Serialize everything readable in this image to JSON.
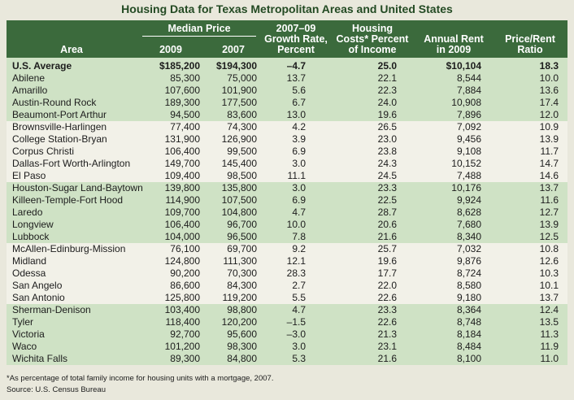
{
  "title": "Housing Data for Texas Metropolitan Areas and United States",
  "header": {
    "area": "Area",
    "median_price": "Median Price",
    "y2009": "2009",
    "y2007": "2007",
    "growth": "2007–09\nGrowth Rate,\nPercent",
    "housing": "Housing\nCosts* Percent\nof Income",
    "rent": "Annual Rent\nin 2009",
    "ratio": "Price/Rent\nRatio"
  },
  "rows": [
    [
      "U.S. Average",
      "$185,200",
      "$194,300",
      "–4.7",
      "25.0",
      "$10,104",
      "18.3"
    ],
    [
      "Abilene",
      "85,300",
      "75,000",
      "13.7",
      "22.1",
      "8,544",
      "10.0"
    ],
    [
      "Amarillo",
      "107,600",
      "101,900",
      "5.6",
      "22.3",
      "7,884",
      "13.6"
    ],
    [
      "Austin-Round Rock",
      "189,300",
      "177,500",
      "6.7",
      "24.0",
      "10,908",
      "17.4"
    ],
    [
      "Beaumont-Port Arthur",
      "94,500",
      "83,600",
      "13.0",
      "19.6",
      "7,896",
      "12.0"
    ],
    [
      "Brownsville-Harlingen",
      "77,400",
      "74,300",
      "4.2",
      "26.5",
      "7,092",
      "10.9"
    ],
    [
      "College Station-Bryan",
      "131,900",
      "126,900",
      "3.9",
      "23.0",
      "9,456",
      "13.9"
    ],
    [
      "Corpus Christi",
      "106,400",
      "99,500",
      "6.9",
      "23.8",
      "9,108",
      "11.7"
    ],
    [
      "Dallas-Fort Worth-Arlington",
      "149,700",
      "145,400",
      "3.0",
      "24.3",
      "10,152",
      "14.7"
    ],
    [
      "El Paso",
      "109,400",
      "98,500",
      "11.1",
      "24.5",
      "7,488",
      "14.6"
    ],
    [
      "Houston-Sugar Land-Baytown",
      "139,800",
      "135,800",
      "3.0",
      "23.3",
      "10,176",
      "13.7"
    ],
    [
      "Killeen-Temple-Fort Hood",
      "114,900",
      "107,500",
      "6.9",
      "22.5",
      "9,924",
      "11.6"
    ],
    [
      "Laredo",
      "109,700",
      "104,800",
      "4.7",
      "28.7",
      "8,628",
      "12.7"
    ],
    [
      "Longview",
      "106,400",
      "96,700",
      "10.0",
      "20.6",
      "7,680",
      "13.9"
    ],
    [
      "Lubbock",
      "104,000",
      "96,500",
      "7.8",
      "21.6",
      "8,340",
      "12.5"
    ],
    [
      "McAllen-Edinburg-Mission",
      "76,100",
      "69,700",
      "9.2",
      "25.7",
      "7,032",
      "10.8"
    ],
    [
      "Midland",
      "124,800",
      "111,300",
      "12.1",
      "19.6",
      "9,876",
      "12.6"
    ],
    [
      "Odessa",
      "90,200",
      "70,300",
      "28.3",
      "17.7",
      "8,724",
      "10.3"
    ],
    [
      "San Angelo",
      "86,600",
      "84,300",
      "2.7",
      "22.0",
      "8,580",
      "10.1"
    ],
    [
      "San Antonio",
      "125,800",
      "119,200",
      "5.5",
      "22.6",
      "9,180",
      "13.7"
    ],
    [
      "Sherman-Denison",
      "103,400",
      "98,800",
      "4.7",
      "23.3",
      "8,364",
      "12.4"
    ],
    [
      "Tyler",
      "118,400",
      "120,200",
      "–1.5",
      "22.6",
      "8,748",
      "13.5"
    ],
    [
      "Victoria",
      "92,700",
      "95,600",
      "–3.0",
      "21.3",
      "8,184",
      "11.3"
    ],
    [
      "Waco",
      "101,200",
      "98,300",
      "3.0",
      "23.1",
      "8,484",
      "11.9"
    ],
    [
      "Wichita Falls",
      "89,300",
      "84,800",
      "5.3",
      "21.6",
      "8,100",
      "11.0"
    ]
  ],
  "footnotes": [
    "*As percentage of total family income for housing units with a mortgage, 2007.",
    "Source: U.S. Census Bureau"
  ]
}
